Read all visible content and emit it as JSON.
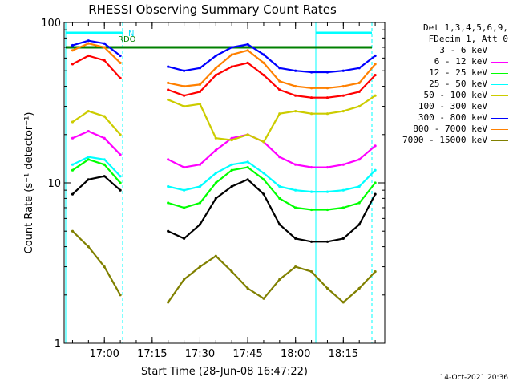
{
  "chart_data": {
    "type": "line",
    "title": "RHESSI Observing Summary Count Rates",
    "xlabel": "Start Time (28-Jun-08 16:47:22)",
    "ylabel": "Count Rate (s⁻¹ detector⁻¹)",
    "yscale": "log",
    "ylim": [
      1,
      100
    ],
    "xlim": [
      "16:47:22",
      "18:28:00"
    ],
    "x_ticks": [
      "17:00",
      "17:15",
      "17:30",
      "17:45",
      "18:00",
      "18:15"
    ],
    "y_ticks": [
      "1",
      "10",
      "100"
    ],
    "legend_header": [
      "Det 1,3,4,5,6,9,",
      "FDecim 1, Att 0"
    ],
    "legend_position": "right",
    "annotations": [
      "N",
      "RDO"
    ],
    "x": [
      "16:50",
      "16:55",
      "17:00",
      "17:05",
      "17:10",
      "17:15",
      "17:20",
      "17:25",
      "17:30",
      "17:35",
      "17:40",
      "17:45",
      "17:50",
      "17:55",
      "18:00",
      "18:05",
      "18:10",
      "18:15",
      "18:20",
      "18:25"
    ],
    "series": [
      {
        "name": "3 - 6 keV",
        "color": "#000000",
        "values": [
          8.5,
          10.5,
          11,
          9,
          null,
          null,
          5.0,
          4.5,
          5.5,
          8.0,
          9.5,
          10.5,
          8.5,
          5.5,
          4.5,
          4.3,
          4.3,
          4.5,
          5.5,
          8.5
        ]
      },
      {
        "name": "6 - 12 keV",
        "color": "#ff00ff",
        "values": [
          19,
          21,
          19,
          15,
          null,
          null,
          14,
          12.5,
          13,
          16,
          19,
          20,
          18,
          14.5,
          13,
          12.5,
          12.5,
          13,
          14,
          17
        ]
      },
      {
        "name": "12 - 25 keV",
        "color": "#00ff00",
        "values": [
          12,
          14,
          13,
          10,
          null,
          null,
          7.5,
          7.0,
          7.5,
          10,
          12,
          12.5,
          10.5,
          8.0,
          7.0,
          6.8,
          6.8,
          7.0,
          7.5,
          10
        ]
      },
      {
        "name": "25 - 50 keV",
        "color": "#00ffff",
        "values": [
          13,
          14.5,
          14,
          11,
          null,
          null,
          9.5,
          9.0,
          9.5,
          11.5,
          13,
          13.5,
          11.5,
          9.5,
          9.0,
          8.8,
          8.8,
          9.0,
          9.5,
          12
        ]
      },
      {
        "name": "50 - 100 keV",
        "color": "#cccc00",
        "values": [
          24,
          28,
          26,
          20,
          null,
          null,
          33,
          30,
          31,
          19,
          18.5,
          20,
          18,
          27,
          28,
          27,
          27,
          28,
          30,
          35
        ]
      },
      {
        "name": "100 - 300 keV",
        "color": "#ff0000",
        "values": [
          55,
          62,
          58,
          45,
          null,
          null,
          38,
          35,
          37,
          47,
          53,
          56,
          47,
          38,
          35,
          34,
          34,
          35,
          37,
          47
        ]
      },
      {
        "name": "300 - 800 keV",
        "color": "#0000ff",
        "values": [
          72,
          77,
          74,
          62,
          null,
          null,
          53,
          50,
          52,
          62,
          70,
          73,
          63,
          52,
          50,
          49,
          49,
          50,
          52,
          62
        ]
      },
      {
        "name": "800 - 7000 keV",
        "color": "#ff8000",
        "values": [
          67,
          74,
          70,
          56,
          null,
          null,
          42,
          40,
          41,
          52,
          63,
          67,
          56,
          43,
          40,
          39,
          39,
          40,
          42,
          55
        ]
      },
      {
        "name": "7000 - 15000 keV",
        "color": "#808000",
        "values": [
          5.0,
          4.0,
          3.0,
          2.0,
          null,
          null,
          1.8,
          2.5,
          3.0,
          3.5,
          2.8,
          2.2,
          1.9,
          2.5,
          3.0,
          2.8,
          2.2,
          1.8,
          2.2,
          2.8
        ]
      }
    ]
  },
  "timestamp": "14-Oct-2021 20:36"
}
